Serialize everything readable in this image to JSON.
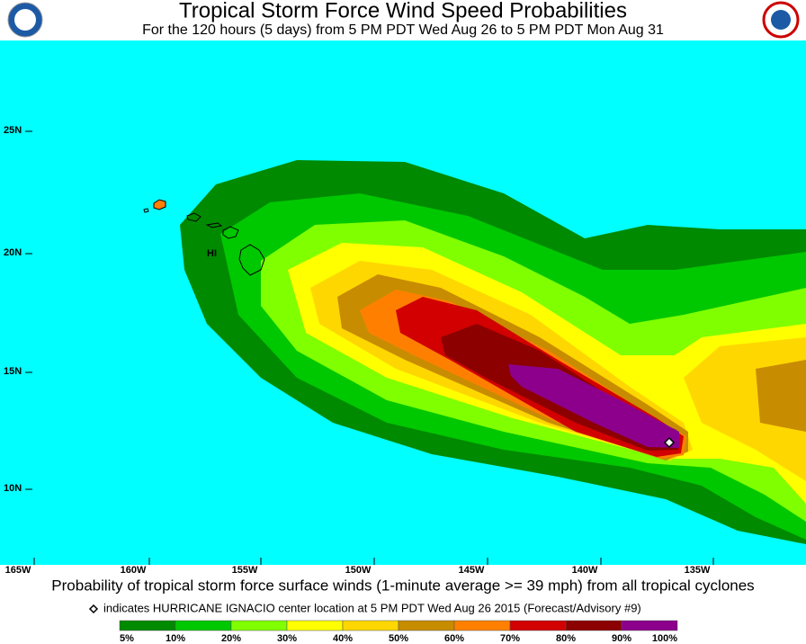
{
  "header": {
    "title": "Tropical Storm Force Wind Speed Probabilities",
    "subtitle": "For the 120 hours (5 days) from 5 PM PDT Wed Aug 26 to 5 PM PDT Mon Aug 31"
  },
  "map": {
    "lat_labels": [
      "25N",
      "20N",
      "15N",
      "10N"
    ],
    "lon_labels": [
      "165W",
      "160W",
      "155W",
      "150W",
      "145W",
      "140W",
      "135W"
    ],
    "place_label": "HI"
  },
  "footer": {
    "description": "Probability of tropical storm force surface winds (1-minute average >= 39 mph) from all tropical cyclones",
    "note": "indicates HURRICANE IGNACIO center location at 5 PM PDT Wed Aug 26 2015 (Forecast/Advisory #9)"
  },
  "legend": {
    "colors": [
      "#008a00",
      "#00c800",
      "#80ff00",
      "#ffff00",
      "#ffd700",
      "#c88c00",
      "#ff8000",
      "#d20000",
      "#8c0000",
      "#8c008c"
    ],
    "labels": [
      "5%",
      "10%",
      "20%",
      "30%",
      "40%",
      "50%",
      "60%",
      "70%",
      "80%",
      "90%",
      "100%"
    ]
  }
}
